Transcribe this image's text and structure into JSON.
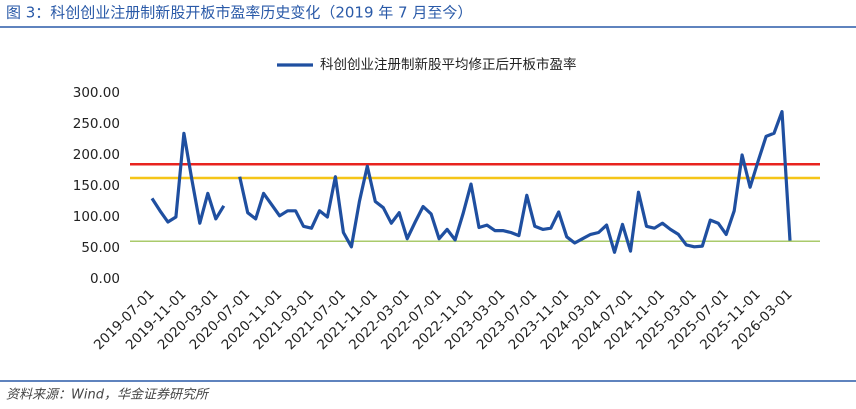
{
  "header": {
    "title": "图 3：科创创业注册制新股开板市盈率历史变化（2019 年 7 月至今）"
  },
  "chart_data": {
    "type": "line",
    "categories": [
      "2019-07-01",
      null,
      null,
      null,
      "2019-11-01",
      null,
      null,
      null,
      "2020-03-01",
      null,
      null,
      null,
      "2020-07-01",
      null,
      null,
      null,
      "2020-11-01",
      null,
      null,
      null,
      "2021-03-01",
      null,
      null,
      null,
      "2021-07-01",
      null,
      null,
      null,
      "2021-11-01",
      null,
      null,
      null,
      "2022-03-01",
      null,
      null,
      null,
      "2022-07-01",
      null,
      null,
      null,
      "2022-11-01",
      null,
      null,
      null,
      "2023-03-01",
      null,
      null,
      null,
      "2023-07-01",
      null,
      null,
      null,
      "2023-11-01",
      null,
      null,
      null,
      "2024-03-01",
      null,
      null,
      null,
      "2024-07-01",
      null,
      null,
      null,
      "2024-11-01",
      null,
      null,
      null,
      "2025-03-01",
      null,
      null,
      null,
      "2025-07-01",
      null,
      null,
      null,
      "2025-11-01",
      null,
      null,
      null,
      "2026-03-01"
    ],
    "series": [
      {
        "name": "科创创业注册制新股平均修正后开板市盈率",
        "color": "#1f4fa0",
        "values": [
          130,
          110,
          92,
          100,
          235,
          160,
          90,
          138,
          97,
          118,
          null,
          165,
          107,
          97,
          138,
          120,
          102,
          110,
          110,
          85,
          82,
          110,
          100,
          165,
          75,
          52,
          125,
          182,
          125,
          115,
          90,
          107,
          65,
          92,
          117,
          105,
          65,
          80,
          63,
          105,
          153,
          83,
          87,
          78,
          78,
          75,
          70,
          135,
          85,
          80,
          82,
          108,
          68,
          58,
          65,
          72,
          75,
          87,
          43,
          88,
          45,
          140,
          85,
          82,
          90,
          80,
          72,
          55,
          52,
          53,
          95,
          90,
          72,
          110,
          200,
          148,
          190,
          230,
          235,
          270,
          62
        ]
      }
    ],
    "reference_lines": [
      {
        "value": 185,
        "color": "#e8231f"
      },
      {
        "value": 163,
        "color": "#f5c518"
      },
      {
        "value": 61,
        "color": "#8db83a"
      }
    ],
    "ylim": [
      0,
      300
    ],
    "yticks": [
      {
        "value": 0,
        "label": "0.00"
      },
      {
        "value": 50,
        "label": "50.00"
      },
      {
        "value": 100,
        "label": "100.00"
      },
      {
        "value": 150,
        "label": "150.00"
      },
      {
        "value": 200,
        "label": "200.00"
      },
      {
        "value": 250,
        "label": "250.00"
      },
      {
        "value": 300,
        "label": "300.00"
      }
    ],
    "legend": "top"
  },
  "footer": {
    "source": "资料来源：Wind，华金证券研究所"
  }
}
